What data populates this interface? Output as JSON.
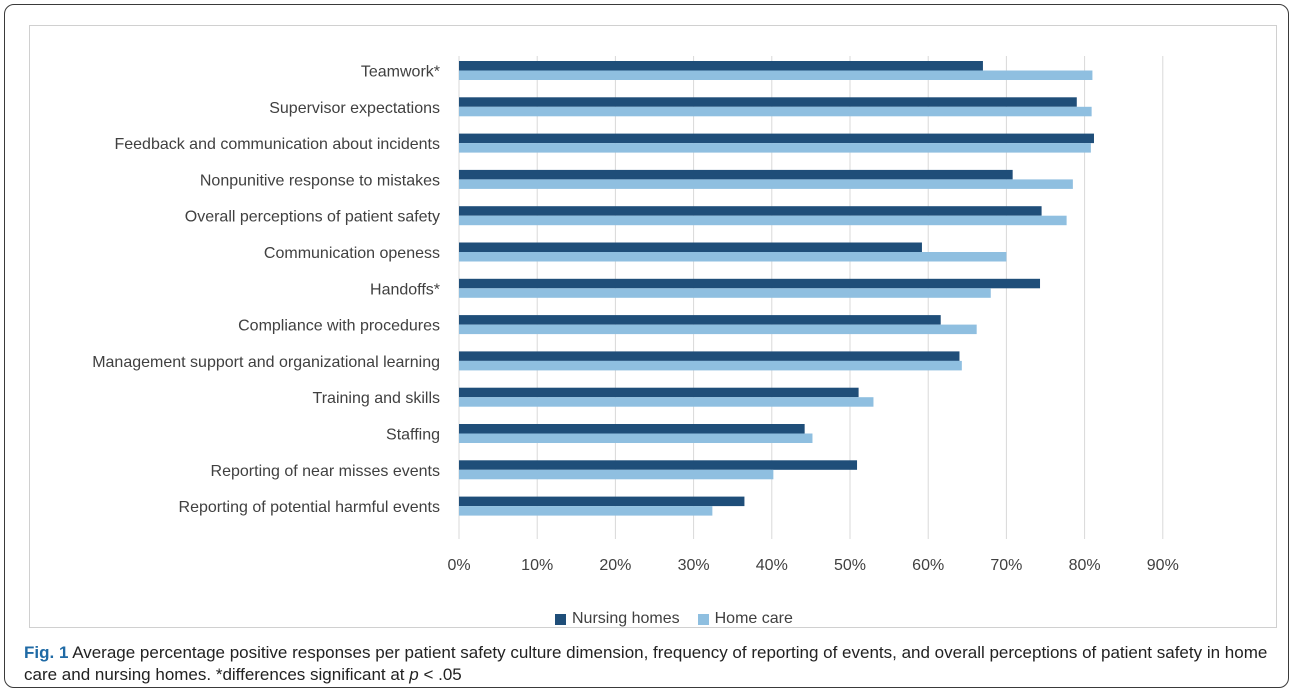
{
  "figure": {
    "label": "Fig. 1",
    "caption_text": " Average percentage positive responses per patient safety culture dimension, frequency of reporting of events, and overall perceptions of patient safety in home care and nursing homes. *differences significant at ",
    "caption_p": "p",
    "caption_tail": " < .05"
  },
  "colors": {
    "nursing_homes": "#1f4e79",
    "home_care": "#8fbfe0",
    "grid": "#d9d9d9",
    "axis_text": "#404040"
  },
  "chart_data": {
    "type": "bar",
    "orientation": "horizontal",
    "title": "",
    "xlabel": "",
    "ylabel": "",
    "xlim": [
      0,
      90
    ],
    "xticks": [
      "0%",
      "10%",
      "20%",
      "30%",
      "40%",
      "50%",
      "60%",
      "70%",
      "80%",
      "90%"
    ],
    "grid": true,
    "legend_position": "bottom",
    "categories": [
      "Teamwork*",
      "Supervisor expectations",
      "Feedback and communication about incidents",
      "Nonpunitive response to mistakes",
      "Overall perceptions of patient safety",
      "Communication openess",
      "Handoffs*",
      "Compliance with procedures",
      "Management support and organizational learning",
      "Training and skills",
      "Staffing",
      "Reporting of near misses events",
      "Reporting of potential harmful events"
    ],
    "series": [
      {
        "name": "Nursing homes",
        "values": [
          67.0,
          79.0,
          81.2,
          70.8,
          74.5,
          59.2,
          74.3,
          61.6,
          64.0,
          51.1,
          44.2,
          50.9,
          36.5
        ]
      },
      {
        "name": "Home care",
        "values": [
          81.0,
          80.9,
          80.8,
          78.5,
          77.7,
          70.0,
          68.0,
          66.2,
          64.3,
          53.0,
          45.2,
          40.2,
          32.4
        ]
      }
    ]
  }
}
